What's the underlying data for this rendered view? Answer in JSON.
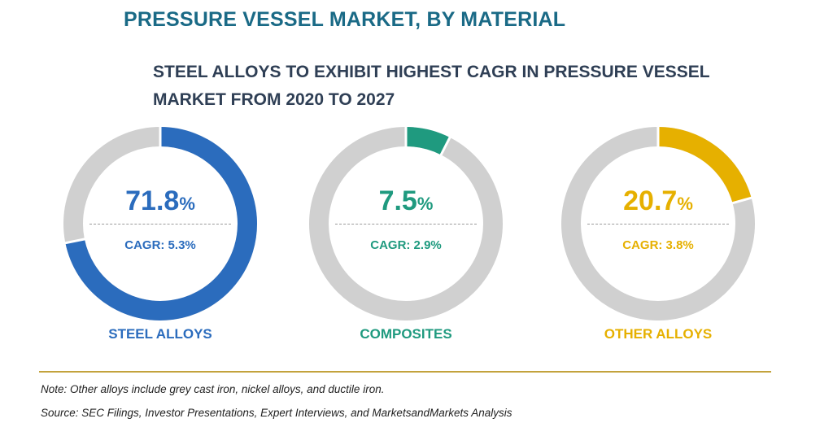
{
  "title": "PRESSURE VESSEL MARKET, BY MATERIAL",
  "subtitle": "STEEL ALLOYS TO EXHIBIT HIGHEST CAGR IN PRESSURE VESSEL MARKET FROM 2020 TO 2027",
  "colors": {
    "track": "#d0d0d0",
    "title": "#1a6a86",
    "subtitle": "#2f3f55",
    "rule": "#c3a23c"
  },
  "chart_data": {
    "type": "pie",
    "variant": "donut",
    "unit": "%",
    "segments": [
      {
        "name": "STEEL ALLOYS",
        "value": 71.8,
        "value_label": "71.8",
        "cagr": "CAGR: 5.3%",
        "color": "#2b6cbd"
      },
      {
        "name": "COMPOSITES",
        "value": 7.5,
        "value_label": "7.5",
        "cagr": "CAGR: 2.9%",
        "color": "#1f9a7f"
      },
      {
        "name": "OTHER ALLOYS",
        "value": 20.7,
        "value_label": "20.7",
        "cagr": "CAGR: 3.8%",
        "color": "#e6b000"
      }
    ]
  },
  "footer": {
    "note": "Note: Other alloys include grey cast iron, nickel alloys, and ductile iron.",
    "source": "Source: SEC Filings, Investor Presentations, Expert Interviews, and MarketsandMarkets Analysis"
  }
}
